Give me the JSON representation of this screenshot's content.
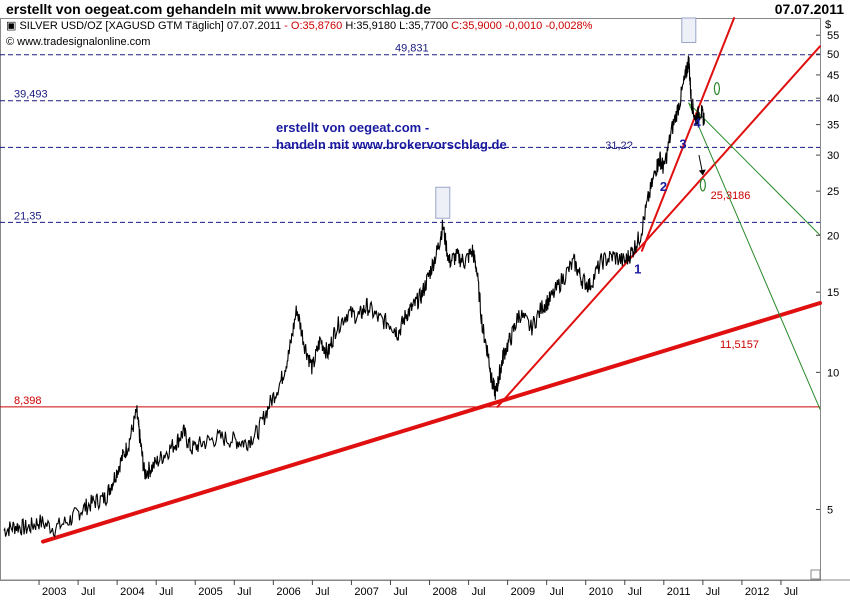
{
  "header": {
    "title": "erstellt von oegeat.com gehandeln mit www.brokervorschlag.de",
    "date": "07.07.2011"
  },
  "chart_data": {
    "type": "line",
    "scale": "log",
    "instrument_line": "SILVER USD/OZ [XAGUSD GTM  Täglich] 07.07.2011",
    "ohlc": [
      {
        "text": "- O:35,8760",
        "color": "#cc0000"
      },
      {
        "text": " H:35,9180 L:35,7700",
        "color": "#000000"
      },
      {
        "text": " C:35,9000 -0,0010 -0,0028%",
        "color": "#cc0000"
      }
    ],
    "source": "© www.tradesignalonline.com",
    "currency_label": "$",
    "y_ticks": [
      5,
      10,
      15,
      20,
      25,
      30,
      35,
      40,
      45,
      50,
      55
    ],
    "ylim": [
      3.5,
      60
    ],
    "x_ticks": [
      {
        "label": "2003",
        "t": 2003.0
      },
      {
        "label": "Jul",
        "t": 2003.5
      },
      {
        "label": "2004",
        "t": 2004.0
      },
      {
        "label": "Jul",
        "t": 2004.5
      },
      {
        "label": "2005",
        "t": 2005.0
      },
      {
        "label": "Jul",
        "t": 2005.5
      },
      {
        "label": "2006",
        "t": 2006.0
      },
      {
        "label": "Jul",
        "t": 2006.5
      },
      {
        "label": "2007",
        "t": 2007.0
      },
      {
        "label": "Jul",
        "t": 2007.5
      },
      {
        "label": "2008",
        "t": 2008.0
      },
      {
        "label": "Jul",
        "t": 2008.5
      },
      {
        "label": "2009",
        "t": 2009.0
      },
      {
        "label": "Jul",
        "t": 2009.5
      },
      {
        "label": "2010",
        "t": 2010.0
      },
      {
        "label": "Jul",
        "t": 2010.5
      },
      {
        "label": "2011",
        "t": 2011.0
      },
      {
        "label": "Jul",
        "t": 2011.5
      },
      {
        "label": "2012",
        "t": 2012.0
      },
      {
        "label": "Jul",
        "t": 2012.5
      }
    ],
    "xlim": [
      2002.5,
      2013.0
    ],
    "series": [
      {
        "values": [
          [
            2002.55,
            4.5
          ],
          [
            2002.7,
            4.6
          ],
          [
            2002.85,
            4.55
          ],
          [
            2003.0,
            4.7
          ],
          [
            2003.2,
            4.55
          ],
          [
            2003.4,
            4.75
          ],
          [
            2003.55,
            5.0
          ],
          [
            2003.7,
            5.2
          ],
          [
            2003.85,
            5.3
          ],
          [
            2003.95,
            5.8
          ],
          [
            2004.05,
            6.4
          ],
          [
            2004.15,
            7.0
          ],
          [
            2004.25,
            8.2
          ],
          [
            2004.29,
            7.2
          ],
          [
            2004.35,
            6.0
          ],
          [
            2004.45,
            6.2
          ],
          [
            2004.6,
            6.6
          ],
          [
            2004.75,
            7.0
          ],
          [
            2004.85,
            7.4
          ],
          [
            2004.95,
            6.8
          ],
          [
            2005.1,
            7.0
          ],
          [
            2005.3,
            7.2
          ],
          [
            2005.5,
            7.1
          ],
          [
            2005.65,
            7.0
          ],
          [
            2005.8,
            7.4
          ],
          [
            2005.95,
            8.5
          ],
          [
            2006.1,
            9.6
          ],
          [
            2006.2,
            11.0
          ],
          [
            2006.3,
            13.8
          ],
          [
            2006.4,
            11.5
          ],
          [
            2006.5,
            10.2
          ],
          [
            2006.6,
            11.8
          ],
          [
            2006.7,
            11.0
          ],
          [
            2006.8,
            12.5
          ],
          [
            2006.95,
            13.5
          ],
          [
            2007.1,
            13.3
          ],
          [
            2007.2,
            14.0
          ],
          [
            2007.35,
            13.1
          ],
          [
            2007.5,
            12.8
          ],
          [
            2007.6,
            12.2
          ],
          [
            2007.7,
            13.4
          ],
          [
            2007.8,
            14.0
          ],
          [
            2007.9,
            14.8
          ],
          [
            2008.0,
            16.5
          ],
          [
            2008.1,
            18.5
          ],
          [
            2008.17,
            21.0
          ],
          [
            2008.25,
            17.5
          ],
          [
            2008.35,
            18.0
          ],
          [
            2008.45,
            17.5
          ],
          [
            2008.55,
            18.5
          ],
          [
            2008.6,
            17.0
          ],
          [
            2008.68,
            12.5
          ],
          [
            2008.75,
            11.0
          ],
          [
            2008.8,
            9.5
          ],
          [
            2008.85,
            9.0
          ],
          [
            2008.9,
            10.0
          ],
          [
            2008.95,
            11.0
          ],
          [
            2009.05,
            12.0
          ],
          [
            2009.15,
            13.5
          ],
          [
            2009.3,
            12.5
          ],
          [
            2009.45,
            14.0
          ],
          [
            2009.55,
            14.5
          ],
          [
            2009.7,
            16.0
          ],
          [
            2009.85,
            17.5
          ],
          [
            2009.95,
            16.0
          ],
          [
            2010.05,
            15.5
          ],
          [
            2010.2,
            17.5
          ],
          [
            2010.35,
            18.0
          ],
          [
            2010.5,
            17.5
          ],
          [
            2010.6,
            18.5
          ],
          [
            2010.7,
            20.0
          ],
          [
            2010.8,
            24.0
          ],
          [
            2010.9,
            28.0
          ],
          [
            2010.95,
            29.5
          ],
          [
            2011.0,
            28.0
          ],
          [
            2011.1,
            34.0
          ],
          [
            2011.2,
            39.0
          ],
          [
            2011.28,
            45.0
          ],
          [
            2011.32,
            48.5
          ],
          [
            2011.35,
            40.0
          ],
          [
            2011.4,
            36.0
          ],
          [
            2011.47,
            37.5
          ],
          [
            2011.52,
            35.9
          ]
        ]
      }
    ],
    "h_lines": [
      {
        "value": 49.831,
        "label": "49,831",
        "color": "#1a1a80",
        "style": "dashed"
      },
      {
        "value": 39.493,
        "label": "39,493",
        "color": "#1a1a80",
        "style": "dashed"
      },
      {
        "value": 31.2,
        "label": "",
        "color": "#1a1a80",
        "style": "dashed"
      },
      {
        "value": 21.35,
        "label": "21,35",
        "color": "#1a1a80",
        "style": "dashed"
      },
      {
        "value": 8.398,
        "label": "8,398",
        "color": "#cc0000",
        "style": "solid"
      }
    ],
    "trend_lines": [
      {
        "name": "long-term-support",
        "points": [
          [
            2003.05,
            4.25
          ],
          [
            2013.0,
            14.2
          ]
        ],
        "color": "#e01010",
        "width": 4
      },
      {
        "name": "support-from-2008-low",
        "points": [
          [
            2008.87,
            8.4
          ],
          [
            2013.0,
            52.0
          ]
        ],
        "color": "#e01010",
        "width": 2
      },
      {
        "name": "steep-support",
        "points": [
          [
            2010.72,
            18.5
          ],
          [
            2011.9,
            60.0
          ]
        ],
        "color": "#e01010",
        "width": 2
      },
      {
        "name": "fan-line-upper",
        "points": [
          [
            2011.32,
            39.0
          ],
          [
            2013.0,
            20.0
          ]
        ],
        "color": "#2a8a2a",
        "width": 1
      },
      {
        "name": "fan-line-lower",
        "points": [
          [
            2011.32,
            39.0
          ],
          [
            2013.0,
            8.3
          ]
        ],
        "color": "#2a8a2a",
        "width": 1
      }
    ],
    "value_labels": [
      {
        "text": "25,3186",
        "t": 2011.6,
        "v": 24.0,
        "color": "#cc0000"
      },
      {
        "text": "11,5157",
        "t": 2011.72,
        "v": 11.3,
        "color": "#cc0000"
      },
      {
        "text": "31,2?",
        "t": 2010.25,
        "v": 30.9,
        "color": "#1a1a80"
      }
    ],
    "annotations": [
      "erstellt von oegeat.com -",
      "handeln mit www.brokervorschlag.de"
    ],
    "wave_labels": [
      {
        "text": "1",
        "t": 2010.62,
        "v": 16.5
      },
      {
        "text": "2",
        "t": 2010.95,
        "v": 25.0
      },
      {
        "text": "3",
        "t": 2011.2,
        "v": 31.0
      },
      {
        "text": "4",
        "t": 2011.38,
        "v": 34.5
      }
    ],
    "markers": [
      {
        "name": "peak-box",
        "t": 2011.32,
        "v_low": 53.0,
        "v_high": 60.0,
        "color": "#9aa6c8"
      },
      {
        "name": "peak-box-2008",
        "t": 2008.17,
        "v_low": 21.8,
        "v_high": 25.5,
        "color": "#9aa6c8"
      },
      {
        "name": "green-ellipse-upper",
        "t": 2011.68,
        "v": 42.0,
        "color": "#2a8a2a"
      },
      {
        "name": "green-ellipse-lower",
        "t": 2011.5,
        "v": 25.8,
        "color": "#2a8a2a"
      }
    ],
    "grid": false,
    "legend": "none"
  }
}
